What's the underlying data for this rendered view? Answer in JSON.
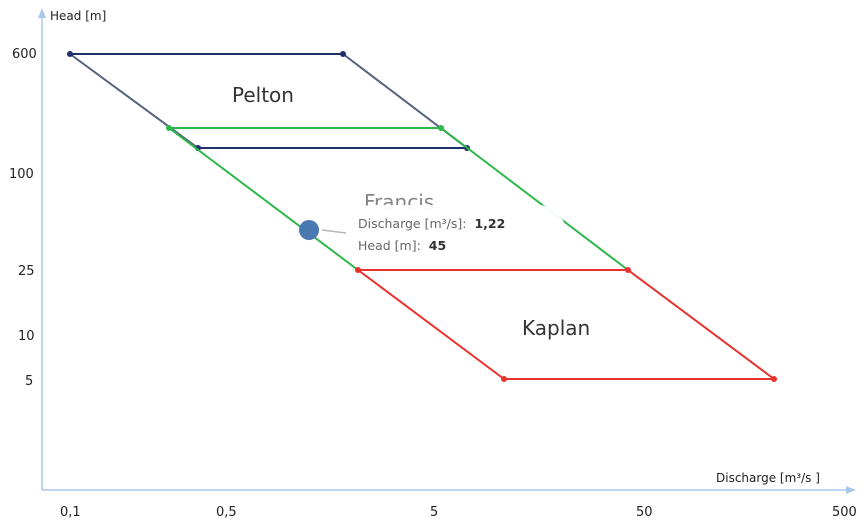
{
  "chart_data": {
    "type": "line",
    "xlabel": "Discharge [m³/s ]",
    "ylabel": "Head [m]",
    "x_ticks": [
      "0,1",
      "0,5",
      "5",
      "50",
      "500"
    ],
    "y_ticks": [
      "600",
      "100",
      "25",
      "10",
      "5"
    ],
    "regions": [
      {
        "name": "Pelton",
        "color": "#1f2f6b",
        "top": {
          "head": 600,
          "from": "0,1",
          "to": 3
        },
        "bottom": {
          "head": 150,
          "from": 0.5,
          "to": 9
        },
        "label_at": {
          "x": 1.2,
          "y": 300
        }
      },
      {
        "name": "Francis",
        "color": "#2db84a",
        "top": {
          "head": 180,
          "from": 0.35,
          "to": 6
        },
        "bottom": {
          "head": 25,
          "from": 2,
          "to": 50
        },
        "label_at": {
          "x": 5,
          "y": 70
        }
      },
      {
        "name": "Kaplan",
        "color": "#e8322d",
        "top": {
          "head": 25,
          "from": 2,
          "to": 50
        },
        "bottom": {
          "head": 5,
          "from": 10,
          "to": 400
        },
        "label_at": {
          "x": 40,
          "y": 12
        }
      }
    ],
    "highlight_point": {
      "x": 1.22,
      "y": 45,
      "color": "#4a78b0"
    },
    "tooltip": {
      "discharge_label": "Discharge [m³/s]:",
      "discharge_value": "1,22",
      "head_label": "Head [m]:",
      "head_value": "45"
    }
  }
}
